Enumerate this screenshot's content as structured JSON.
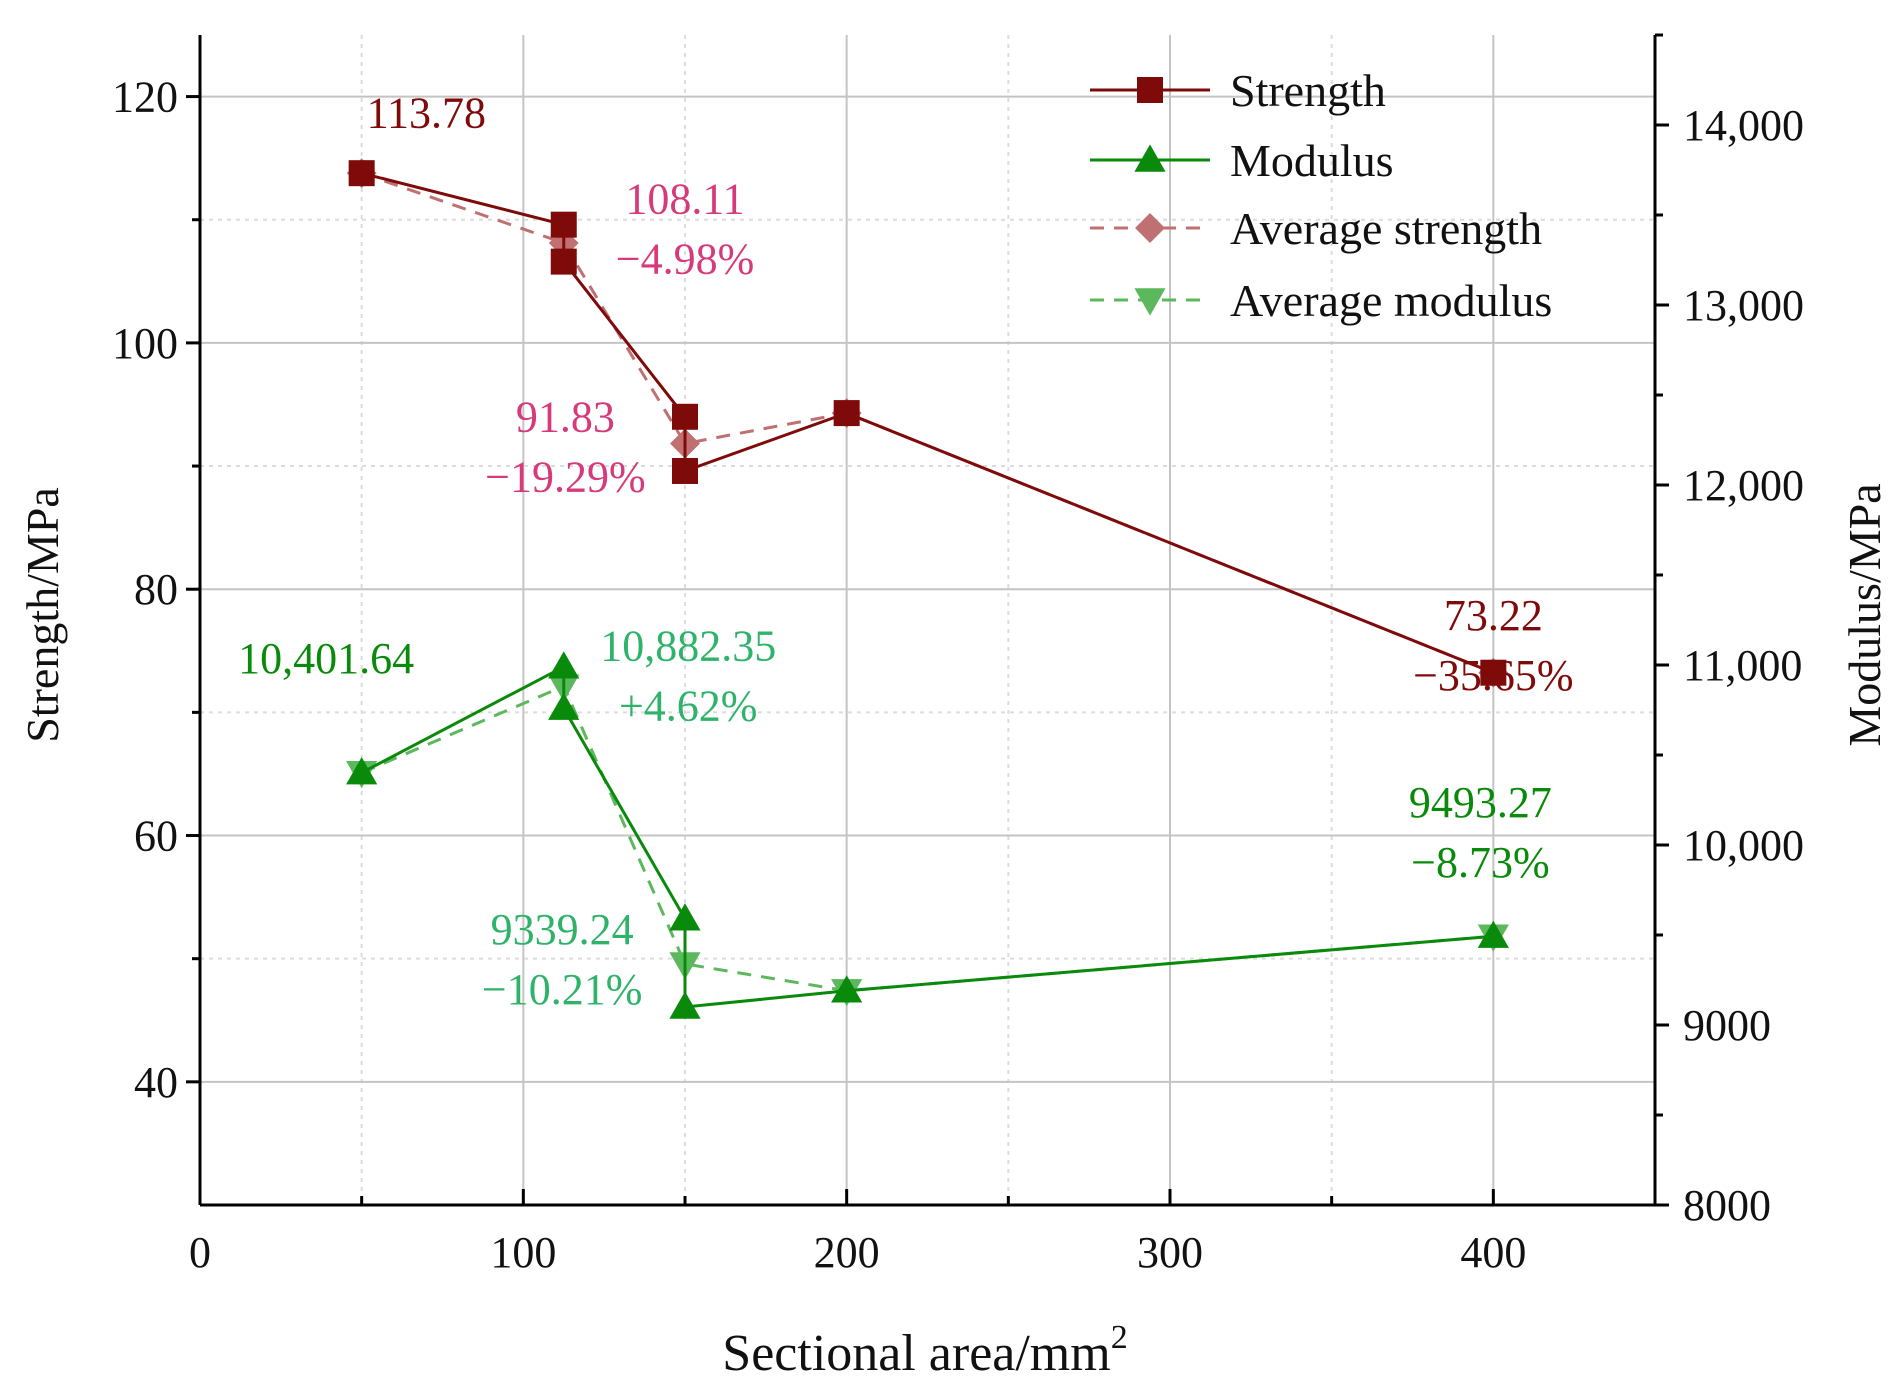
{
  "chart_data": {
    "type": "line",
    "xlabel": "Sectional area/mm",
    "xlabel_sup": "2",
    "ylabel_left": "Strength/MPa",
    "ylabel_right": "Modulus/MPa",
    "xlim": [
      0,
      450
    ],
    "ylim_left": [
      30,
      125
    ],
    "ylim_right": [
      8000,
      14500
    ],
    "x_ticks": [
      0,
      100,
      200,
      300,
      400
    ],
    "x_tick_labels": [
      "0",
      "100",
      "200",
      "300",
      "400"
    ],
    "y_left_ticks": [
      40,
      60,
      80,
      100,
      120
    ],
    "y_left_tick_labels": [
      "40",
      "60",
      "80",
      "100",
      "120"
    ],
    "y_right_ticks": [
      8000,
      9000,
      10000,
      11000,
      12000,
      13000,
      14000
    ],
    "y_right_tick_labels": [
      "8000",
      "9000",
      "10,000",
      "11,000",
      "12,000",
      "13,000",
      "14,000"
    ],
    "grid": true,
    "legend_position": "top-right",
    "series": [
      {
        "name": "Strength",
        "axis": "left",
        "marker": "square",
        "line": "solid",
        "color": "#7f0a0a",
        "x": [
          50,
          112.5,
          112.5,
          150,
          150,
          200,
          400
        ],
        "y": [
          113.78,
          109.6,
          106.6,
          94.0,
          89.6,
          94.3,
          73.22
        ]
      },
      {
        "name": "Modulus",
        "axis": "right",
        "marker": "triangle-up",
        "line": "solid",
        "color": "#0a8a0a",
        "x": [
          50,
          112.5,
          112.5,
          150,
          150,
          200,
          400
        ],
        "y": [
          10401.64,
          10990,
          10760,
          9590,
          9100,
          9190,
          9493.27
        ]
      },
      {
        "name": "Average strength",
        "axis": "left",
        "marker": "diamond",
        "line": "dashed",
        "color": "#c07070",
        "x": [
          50,
          112.5,
          150,
          200,
          400
        ],
        "y": [
          113.78,
          108.11,
          91.83,
          94.3,
          73.22
        ]
      },
      {
        "name": "Average modulus",
        "axis": "right",
        "marker": "triangle-down",
        "line": "dashed",
        "color": "#5cb85c",
        "x": [
          50,
          112.5,
          150,
          200,
          400
        ],
        "y": [
          10401.64,
          10882.35,
          9339.24,
          9190,
          9493.27
        ]
      }
    ],
    "annotations": [
      {
        "lines": [
          "113.78"
        ],
        "color": "#7f0a0a",
        "x": 70,
        "y": 117.5,
        "axis": "left"
      },
      {
        "lines": [
          "108.11",
          "−4.98%"
        ],
        "color": "#d63a7a",
        "x": 150,
        "y": 110.5,
        "axis": "left"
      },
      {
        "lines": [
          "91.83",
          "−19.29%"
        ],
        "color": "#d63a7a",
        "x": 113,
        "y": 92.8,
        "axis": "left"
      },
      {
        "lines": [
          "73.22",
          "−35.65%"
        ],
        "color": "#7f0a0a",
        "x": 400,
        "y": 76.7,
        "axis": "left"
      },
      {
        "lines": [
          "10,401.64"
        ],
        "color": "#0a8a0a",
        "x": 39,
        "y": 73.2,
        "axis": "left"
      },
      {
        "lines": [
          "10,882.35",
          "+4.62%"
        ],
        "color": "#2fb36a",
        "x": 151,
        "y": 74.2,
        "axis": "left"
      },
      {
        "lines": [
          "9339.24",
          "−10.21%"
        ],
        "color": "#2fb36a",
        "x": 112,
        "y": 51.2,
        "axis": "left"
      },
      {
        "lines": [
          "9493.27",
          "−8.73%"
        ],
        "color": "#0a8a0a",
        "x": 396,
        "y": 61.5,
        "axis": "left"
      }
    ]
  }
}
